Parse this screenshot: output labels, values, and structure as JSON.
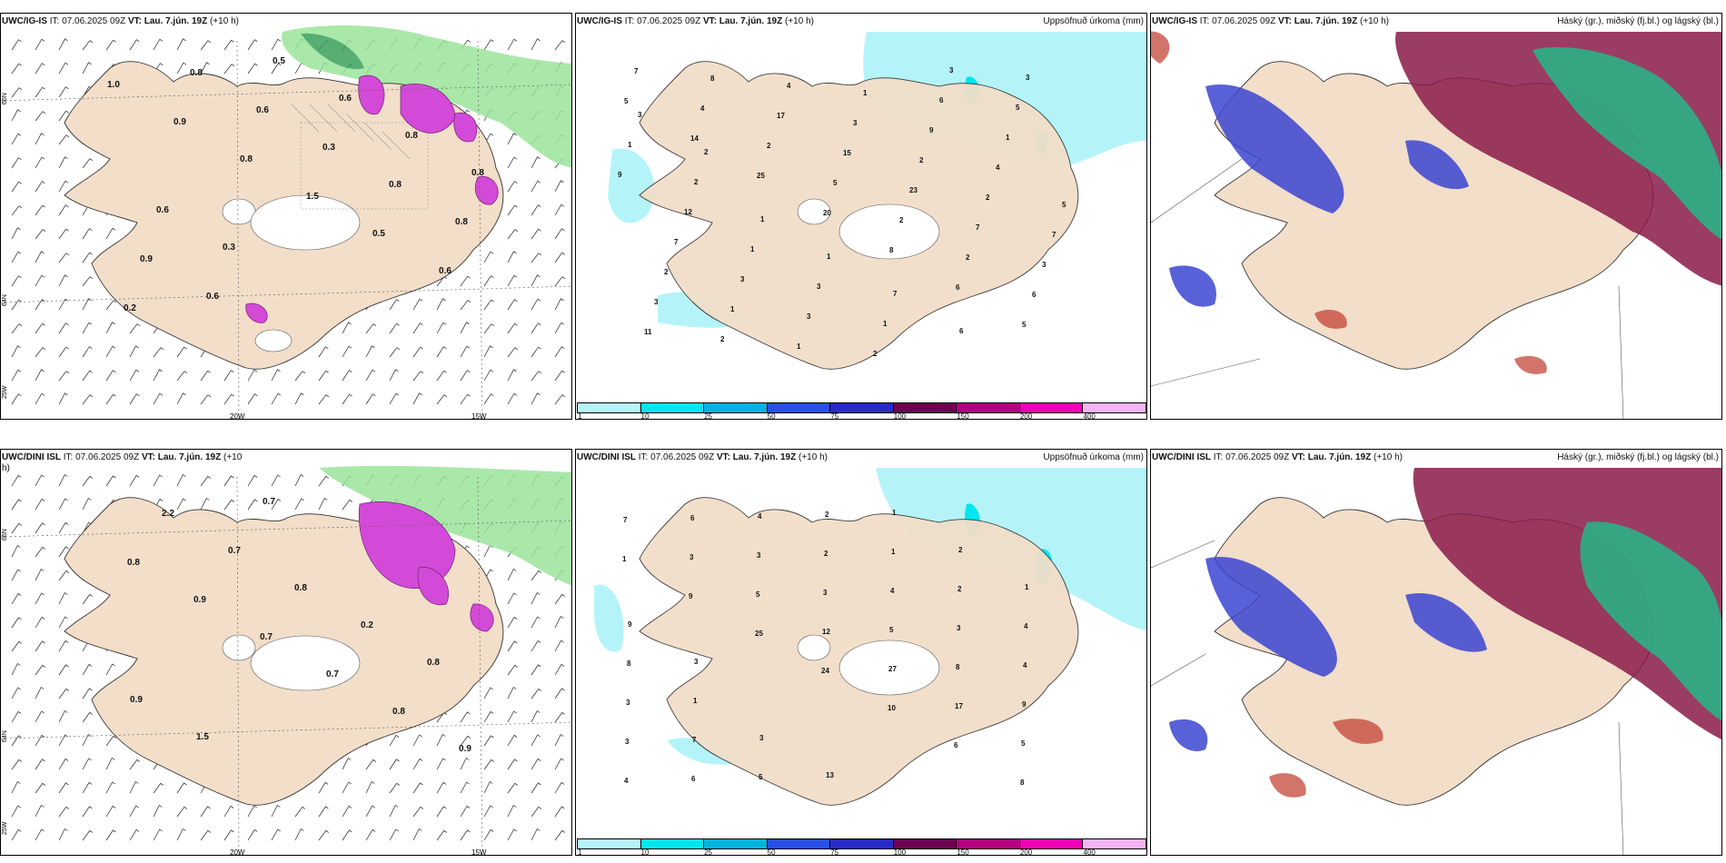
{
  "panels": {
    "p1": {
      "model": "UWC/IG-IS",
      "it": "IT: 07.06.2025 09Z",
      "vt_label": "VT:",
      "vt": "Lau. 7.jún. 19Z",
      "lead": "(+10 h)",
      "title_right": ""
    },
    "p2": {
      "model": "UWC/IG-IS",
      "it": "IT: 07.06.2025 09Z",
      "vt_label": "VT:",
      "vt": "Lau. 7.jún. 19Z",
      "lead": "(+10 h)",
      "title_right": "Uppsöfnuð úrkoma (mm)"
    },
    "p3": {
      "model": "UWC/IG-IS",
      "it": "IT: 07.06.2025 09Z",
      "vt_label": "VT:",
      "vt": "Lau. 7.jún. 19Z",
      "lead": "(+10 h)",
      "title_right": "Háský (gr.), miðský (fj.bl.) og lágský (bl.)"
    },
    "p4": {
      "model": "UWC/DINI ISL",
      "it": "IT: 07.06.2025 09Z",
      "vt_label": "VT:",
      "vt": "Lau. 7.jún. 19Z",
      "lead": "(+10",
      "lead2": "h)",
      "title_right": ""
    },
    "p5": {
      "model": "UWC/DINI ISL",
      "it": "IT: 07.06.2025 09Z",
      "vt_label": "VT:",
      "vt": "Lau. 7.jún. 19Z",
      "lead": "(+10 h)",
      "title_right": "Uppsöfnuð úrkoma (mm)"
    },
    "p6": {
      "model": "UWC/DINI ISL",
      "it": "IT: 07.06.2025 09Z",
      "vt_label": "VT:",
      "vt": "Lau. 7.jún. 19Z",
      "lead": "(+10 h)",
      "title_right": "Háský (gr.), miðský (fj.bl.) og lágský (bl.)"
    }
  },
  "grid_labels": {
    "lat66": "66N",
    "lat64": "64N",
    "lon25": "25W",
    "lon20": "20W",
    "lon15": "15W"
  },
  "colorbar": {
    "ticks": [
      "1",
      "10",
      "25",
      "50",
      "75",
      "100",
      "150",
      "200",
      "400"
    ],
    "colors": [
      "#b4f4f8",
      "#00e6f0",
      "#00b4e0",
      "#2850e6",
      "#2a2ac8",
      "#6e0050",
      "#b4007e",
      "#f000b4",
      "#f4b4f4"
    ]
  },
  "labels_top_left": [
    "1.0",
    "0.9",
    "0.8",
    "1.5",
    "0.5",
    "0.6",
    "0.2",
    "0.8",
    "0.6",
    "0.3",
    "0.8",
    "0.8",
    "0.9",
    "0.6",
    "0.5",
    "0.6",
    "0.8",
    "0.8",
    "0.6",
    "0.3"
  ],
  "labels_bot_left": [
    "0.8",
    "0.9",
    "0.7",
    "0.7",
    "0.8",
    "0.9",
    "2.2",
    "0.7",
    "0.8",
    "0.2",
    "0.8",
    "0.9",
    "1.5",
    "0.7"
  ],
  "labels_top_mid": [
    "5",
    "14",
    "25",
    "20",
    "8",
    "6",
    "5",
    "7",
    "4",
    "2",
    "5",
    "2",
    "2",
    "6",
    "11",
    "8",
    "17",
    "15",
    "23",
    "7",
    "3",
    "3",
    "2",
    "4",
    "3",
    "2",
    "2",
    "7",
    "2",
    "1",
    "1",
    "1",
    "9",
    "4",
    "5",
    "7",
    "3",
    "3",
    "2",
    "6",
    "1",
    "9",
    "12",
    "1",
    "3",
    "1",
    "3",
    "5",
    "1",
    "2",
    "1",
    "1",
    "7",
    "6",
    "3",
    "3",
    "2"
  ],
  "labels_bot_mid": [
    "1",
    "9",
    "25",
    "24",
    "10",
    "6",
    "8",
    "7",
    "3",
    "5",
    "12",
    "27",
    "17",
    "5",
    "4",
    "6",
    "3",
    "3",
    "5",
    "8",
    "9",
    "3",
    "6",
    "4",
    "2",
    "4",
    "3",
    "4",
    "3",
    "7",
    "5",
    "2",
    "1",
    "2",
    "4",
    "8",
    "1",
    "3",
    "13",
    "1",
    "2",
    "1",
    "9",
    "3"
  ]
}
